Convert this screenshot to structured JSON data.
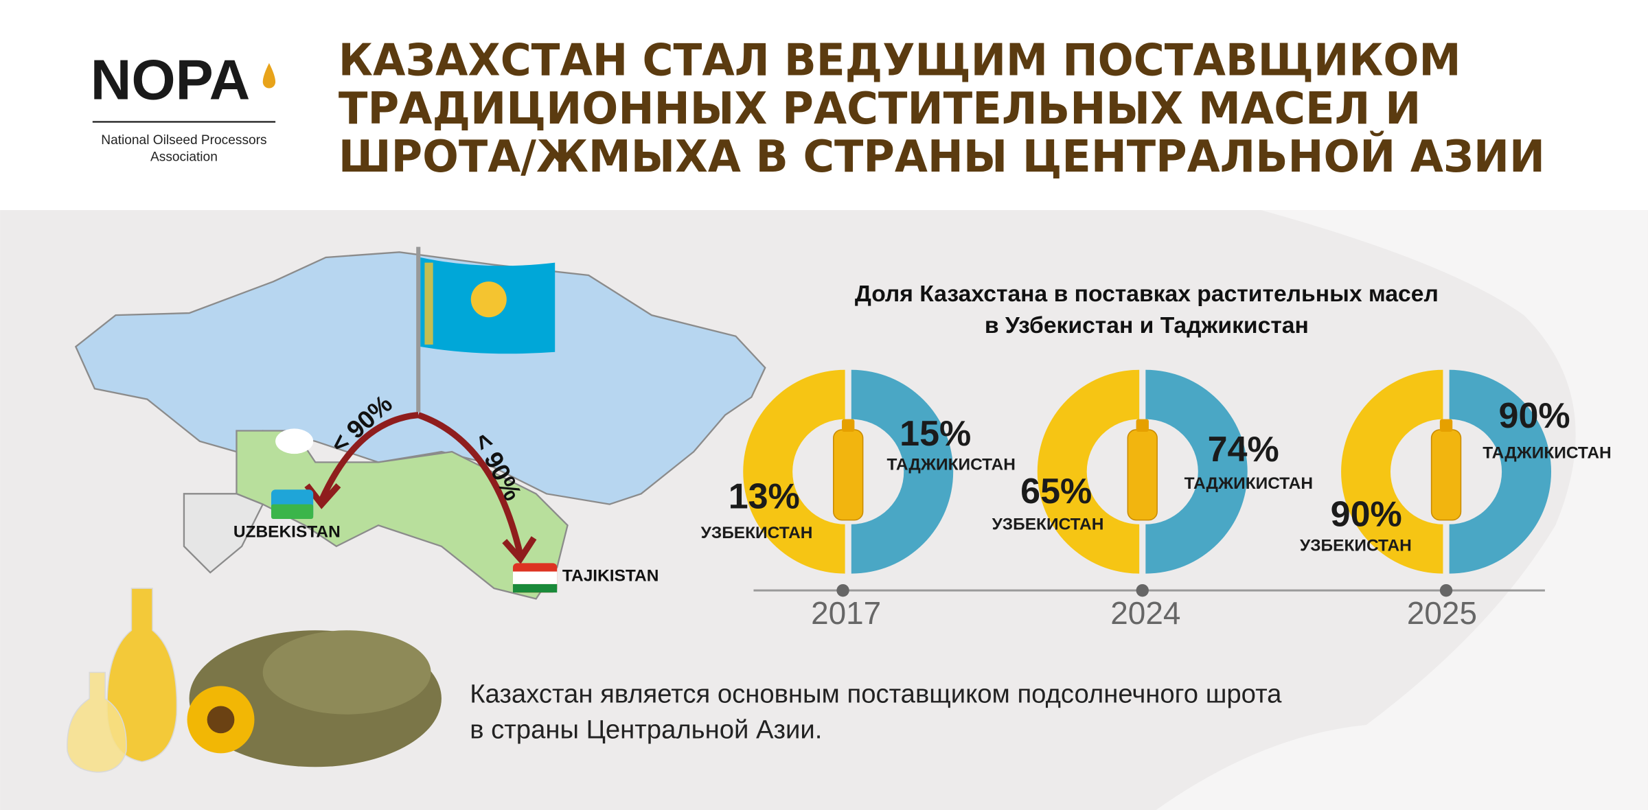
{
  "logo": {
    "name": "NOPA",
    "subtitle_lines": [
      "National Oilseed Processors",
      "Association"
    ]
  },
  "header": {
    "title_lines": [
      "КАЗАХСТАН СТАЛ ВЕДУЩИМ ПОСТАВЩИКОМ",
      "ТРАДИЦИОННЫХ РАСТИТЕЛЬНЫХ МАСЕЛ И",
      "ШРОТА/ЖМЫХА В СТРАНЫ ЦЕНТРАЛЬНОЙ АЗИИ"
    ]
  },
  "map": {
    "arrow_labels": [
      "< 90%",
      "< 90%"
    ],
    "countries": [
      "UZBEKISTAN",
      "TAJIKISTAN"
    ]
  },
  "donuts": {
    "title_lines": [
      "Доля Казахстана в поставках растительных масел",
      "в Узбекистан и Таджикистан"
    ],
    "items": [
      {
        "year": "2017",
        "uzbekistan_share": "13%",
        "uzbekistan_label": "УЗБЕКИСТАН",
        "tajikistan_share": "15%",
        "tajikistan_label": "ТАДЖИКИСТАН"
      },
      {
        "year": "2024",
        "uzbekistan_share": "65%",
        "uzbekistan_label": "УЗБЕКИСТАН",
        "tajikistan_share": "74%",
        "tajikistan_label": "ТАДЖИКИСТАН"
      },
      {
        "year": "2025",
        "uzbekistan_share": "90%",
        "uzbekistan_label": "УЗБЕКИСТАН",
        "tajikistan_share": "90%",
        "tajikistan_label": "ТАДЖИКИСТАН"
      }
    ]
  },
  "footer": {
    "lines": [
      "Казахстан является основным поставщиком подсолнечного шрота",
      "в страны Центральной Азии."
    ]
  }
}
